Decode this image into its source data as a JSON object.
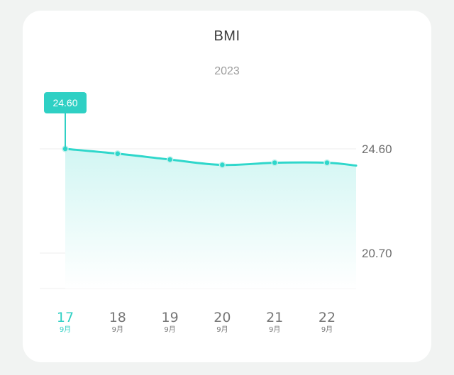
{
  "chart_data": {
    "type": "area",
    "title": "BMI",
    "subtitle": "2023",
    "x": [
      "17",
      "18",
      "19",
      "20",
      "21",
      "22"
    ],
    "x_sublabel": "9月",
    "values": [
      24.6,
      24.42,
      24.2,
      24.0,
      24.08,
      24.08
    ],
    "series": [
      {
        "values": [
          24.6,
          24.42,
          24.2,
          24.0,
          24.08,
          24.08
        ]
      }
    ],
    "yticks": [
      "24.60",
      "20.70"
    ],
    "ylim": [
      19.33,
      26.08
    ],
    "selected_index": 0,
    "tooltip": "24.60",
    "grid": true,
    "line_color": "#2fd7cb",
    "fill_color": "#d9f7f5",
    "accent_color": "#2fd0c4"
  }
}
